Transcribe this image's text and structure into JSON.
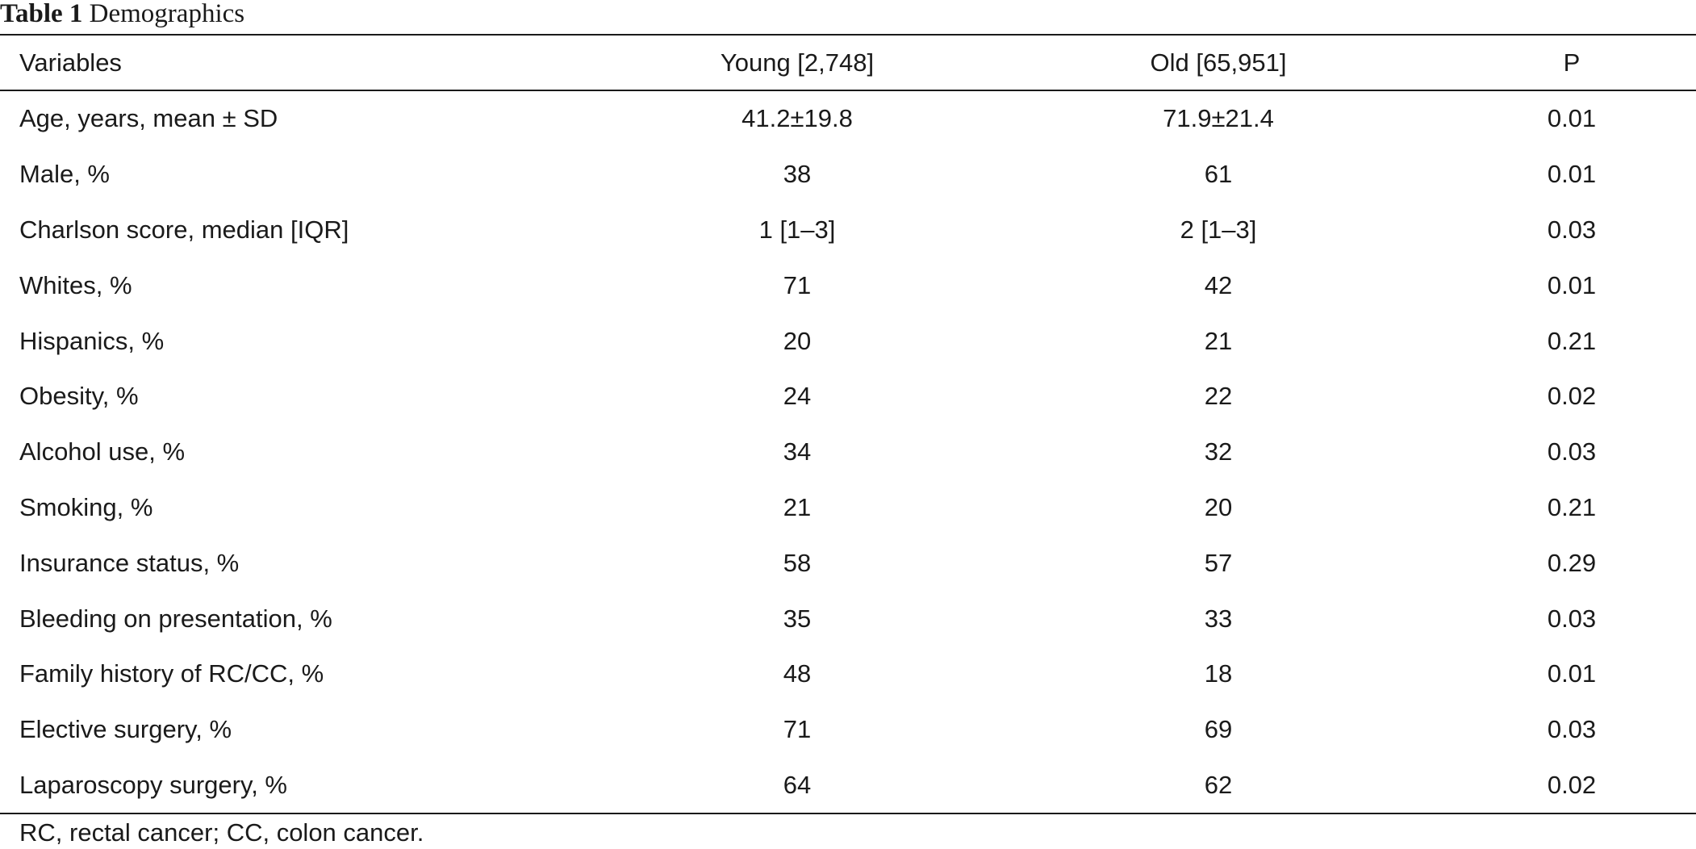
{
  "caption": {
    "label": "Table 1",
    "title": "Demographics"
  },
  "table": {
    "headers": {
      "variables": "Variables",
      "young": "Young [2,748]",
      "old": "Old [65,951]",
      "p": "P"
    },
    "rows": [
      {
        "variable": "Age, years, mean ± SD",
        "young": "41.2±19.8",
        "old": "71.9±21.4",
        "p": "0.01"
      },
      {
        "variable": "Male, %",
        "young": "38",
        "old": "61",
        "p": "0.01"
      },
      {
        "variable": "Charlson score, median [IQR]",
        "young": "1 [1–3]",
        "old": "2 [1–3]",
        "p": "0.03"
      },
      {
        "variable": "Whites, %",
        "young": "71",
        "old": "42",
        "p": "0.01"
      },
      {
        "variable": "Hispanics, %",
        "young": "20",
        "old": "21",
        "p": "0.21"
      },
      {
        "variable": "Obesity, %",
        "young": "24",
        "old": "22",
        "p": "0.02"
      },
      {
        "variable": "Alcohol use, %",
        "young": "34",
        "old": "32",
        "p": "0.03"
      },
      {
        "variable": "Smoking, %",
        "young": "21",
        "old": "20",
        "p": "0.21"
      },
      {
        "variable": "Insurance status, %",
        "young": "58",
        "old": "57",
        "p": "0.29"
      },
      {
        "variable": "Bleeding on presentation, %",
        "young": "35",
        "old": "33",
        "p": "0.03"
      },
      {
        "variable": "Family history of RC/CC, %",
        "young": "48",
        "old": "18",
        "p": "0.01"
      },
      {
        "variable": "Elective surgery, %",
        "young": "71",
        "old": "69",
        "p": "0.03"
      },
      {
        "variable": "Laparoscopy surgery, %",
        "young": "64",
        "old": "62",
        "p": "0.02"
      }
    ]
  },
  "footnote": "RC, rectal cancer; CC, colon cancer."
}
